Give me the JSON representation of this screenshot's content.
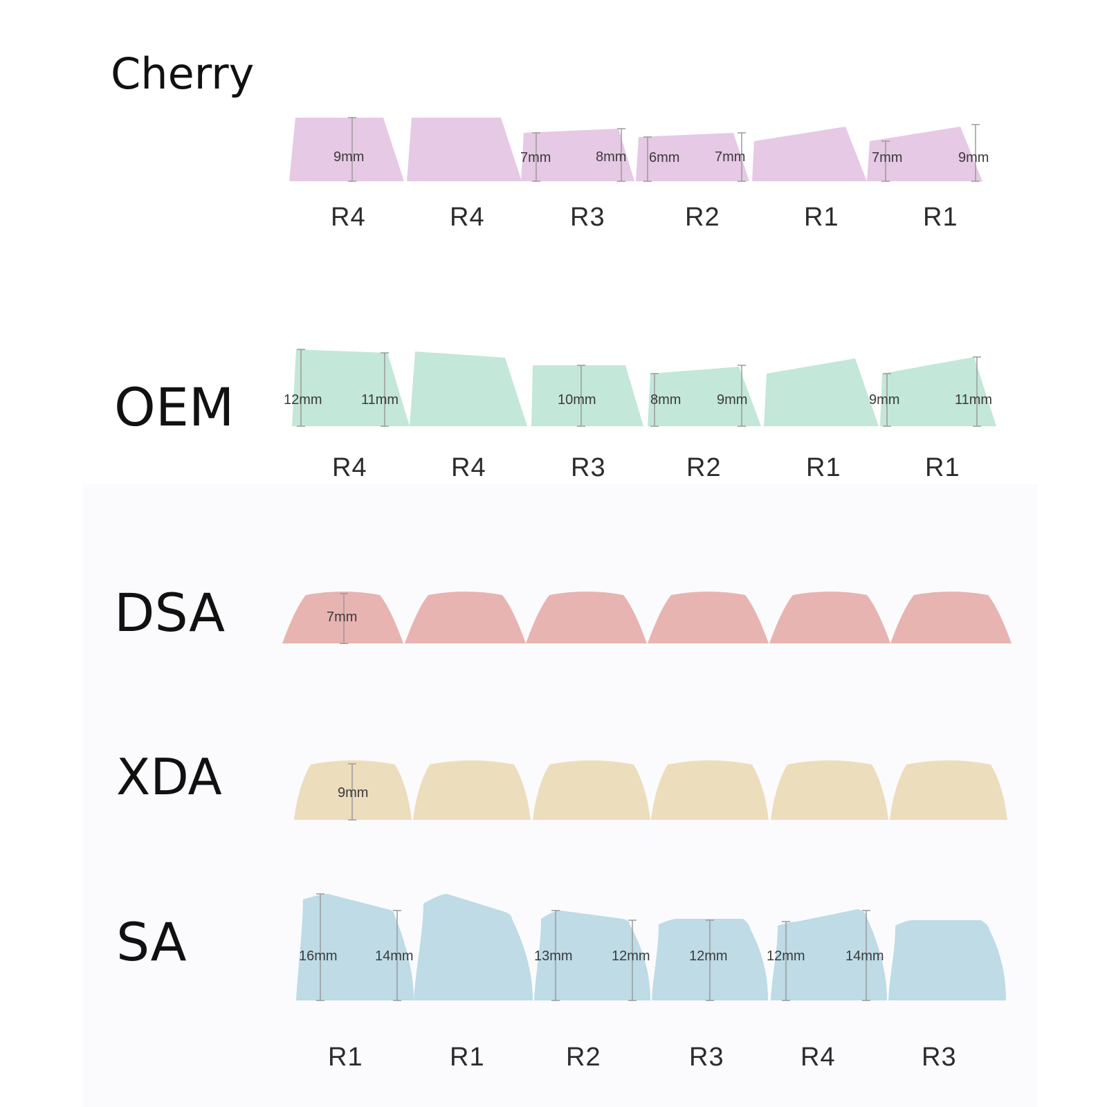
{
  "profiles": [
    {
      "id": "cherry",
      "name": "Cherry",
      "color": "#e6c9e4",
      "rows": [
        "R4",
        "R4",
        "R3",
        "R2",
        "R1",
        "R1"
      ],
      "heights": [
        "9mm",
        "7mm",
        "8mm",
        "6mm",
        "7mm",
        "7mm",
        "9mm"
      ]
    },
    {
      "id": "oem",
      "name": "OEM",
      "color": "#c3e7d8",
      "rows": [
        "R4",
        "R4",
        "R3",
        "R2",
        "R1",
        "R1"
      ],
      "heights": [
        "12mm",
        "11mm",
        "10mm",
        "8mm",
        "9mm",
        "9mm",
        "11mm"
      ]
    },
    {
      "id": "dsa",
      "name": "DSA",
      "color": "#e7b4b2",
      "rows": [],
      "heights": [
        "7mm"
      ]
    },
    {
      "id": "xda",
      "name": "XDA",
      "color": "#ecddbd",
      "rows": [],
      "heights": [
        "9mm"
      ]
    },
    {
      "id": "sa",
      "name": "SA",
      "color": "#bedbe6",
      "rows": [
        "R1",
        "R1",
        "R2",
        "R3",
        "R4",
        "R3"
      ],
      "heights": [
        "16mm",
        "14mm",
        "13mm",
        "12mm",
        "12mm",
        "12mm",
        "14mm"
      ]
    }
  ]
}
